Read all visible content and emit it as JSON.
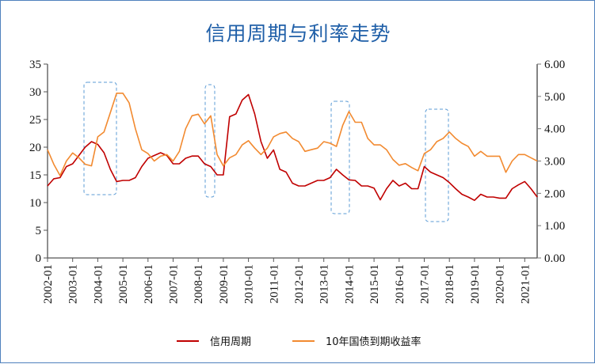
{
  "chart_data": {
    "type": "line",
    "title": "信用周期与利率走势",
    "x_start": "2002-01",
    "x_step": "quarter",
    "x_tick_labels": [
      "2002-01",
      "2003-01",
      "2004-01",
      "2005-01",
      "2006-01",
      "2007-01",
      "2008-01",
      "2009-01",
      "2010-01",
      "2011-01",
      "2012-01",
      "2013-01",
      "2014-01",
      "2015-01",
      "2016-01",
      "2017-01",
      "2018-01",
      "2019-01",
      "2020-01",
      "2021-01"
    ],
    "y_left": {
      "range": [
        0,
        35
      ],
      "ticks": [
        "0",
        "5",
        "10",
        "15",
        "20",
        "25",
        "30",
        "35"
      ]
    },
    "y_right": {
      "range": [
        0,
        6
      ],
      "ticks": [
        "0.00",
        "1.00",
        "2.00",
        "3.00",
        "4.00",
        "5.00",
        "6.00"
      ]
    },
    "series": [
      {
        "name": "信用周期",
        "axis": "left",
        "color": "#c00000",
        "values": [
          13,
          14.3,
          14.5,
          16.5,
          17,
          18.5,
          20,
          21,
          20.5,
          19,
          16,
          13.8,
          14,
          14,
          14.5,
          16.5,
          18,
          18.5,
          19,
          18.5,
          17,
          17,
          18,
          18.4,
          18.4,
          17,
          16.5,
          15,
          15,
          25.5,
          26,
          28.5,
          29.5,
          26,
          21,
          18,
          19.5,
          16,
          15.5,
          13.5,
          13,
          13,
          13.5,
          14,
          14,
          14.5,
          16,
          15,
          14.1,
          14,
          13,
          13,
          12.6,
          10.5,
          12.5,
          14,
          13,
          13.5,
          12.5,
          12.5,
          16.5,
          15.5,
          15,
          14.5,
          13.6,
          12.5,
          11.5,
          11,
          10.4,
          11.5,
          11,
          11,
          10.8,
          10.8,
          12.5,
          13.2,
          13.8,
          12.5,
          11
        ]
      },
      {
        "name": "10年国债到期收益率",
        "axis": "right",
        "color": "#f28a30",
        "values": [
          3.35,
          2.9,
          2.55,
          3.0,
          3.25,
          3.1,
          2.9,
          2.85,
          3.75,
          3.9,
          4.5,
          5.1,
          5.1,
          4.8,
          4.0,
          3.35,
          3.23,
          3.0,
          3.15,
          3.2,
          3.0,
          3.3,
          4.0,
          4.4,
          4.45,
          4.15,
          4.4,
          3.2,
          2.85,
          3.1,
          3.2,
          3.5,
          3.63,
          3.4,
          3.2,
          3.4,
          3.75,
          3.85,
          3.9,
          3.7,
          3.6,
          3.3,
          3.35,
          3.4,
          3.6,
          3.55,
          3.45,
          4.1,
          4.53,
          4.2,
          4.2,
          3.7,
          3.5,
          3.5,
          3.35,
          3.05,
          2.87,
          2.92,
          2.8,
          2.7,
          3.23,
          3.35,
          3.6,
          3.7,
          3.9,
          3.7,
          3.55,
          3.45,
          3.15,
          3.3,
          3.15,
          3.15,
          3.15,
          2.65,
          3.0,
          3.2,
          3.2,
          3.1,
          3.0
        ]
      }
    ],
    "legend": "bottom",
    "grid": false
  }
}
